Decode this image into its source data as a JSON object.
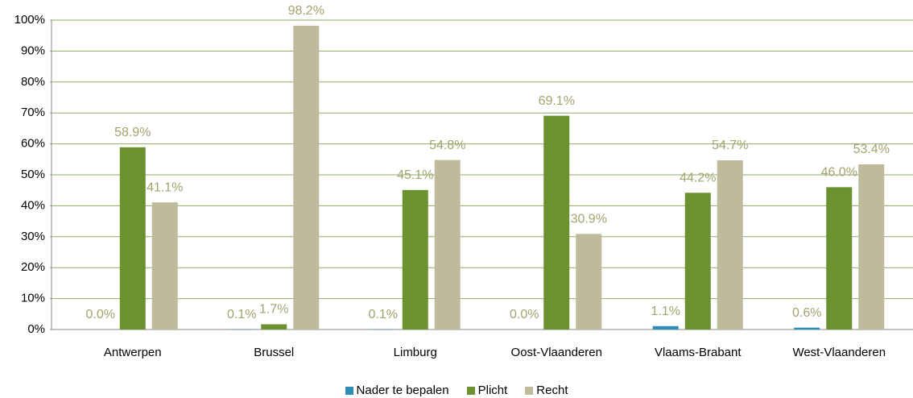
{
  "chart_data": {
    "type": "bar",
    "categories": [
      "Antwerpen",
      "Brussel",
      "Limburg",
      "Oost-Vlaanderen",
      "Vlaams-Brabant",
      "West-Vlaanderen"
    ],
    "series": [
      {
        "name": "Nader te bepalen",
        "color": "#2f8cb6",
        "values": [
          0.0,
          0.1,
          0.1,
          0.0,
          1.1,
          0.6
        ],
        "value_labels": [
          "0.0%",
          "0.1%",
          "0.1%",
          "0.0%",
          "1.1%",
          "0.6%"
        ]
      },
      {
        "name": "Plicht",
        "color": "#6b9130",
        "values": [
          58.9,
          1.7,
          45.1,
          69.1,
          44.2,
          46.0
        ],
        "value_labels": [
          "58.9%",
          "1.7%",
          "45.1%",
          "69.1%",
          "44.2%",
          "46.0%"
        ]
      },
      {
        "name": "Recht",
        "color": "#bdbb9c",
        "values": [
          41.1,
          98.2,
          54.8,
          30.9,
          54.7,
          53.4
        ],
        "value_labels": [
          "41.1%",
          "98.2%",
          "54.8%",
          "30.9%",
          "54.7%",
          "53.4%"
        ]
      }
    ],
    "ylim": [
      0,
      100
    ],
    "yticks": [
      {
        "value": 0,
        "label": "0%"
      },
      {
        "value": 10,
        "label": "10%"
      },
      {
        "value": 20,
        "label": "20%"
      },
      {
        "value": 30,
        "label": "30%"
      },
      {
        "value": 40,
        "label": "40%"
      },
      {
        "value": 50,
        "label": "50%"
      },
      {
        "value": 60,
        "label": "60%"
      },
      {
        "value": 70,
        "label": "70%"
      },
      {
        "value": 80,
        "label": "80%"
      },
      {
        "value": 90,
        "label": "90%"
      },
      {
        "value": 100,
        "label": "100%"
      }
    ],
    "grid": true,
    "legend": "bottom"
  }
}
